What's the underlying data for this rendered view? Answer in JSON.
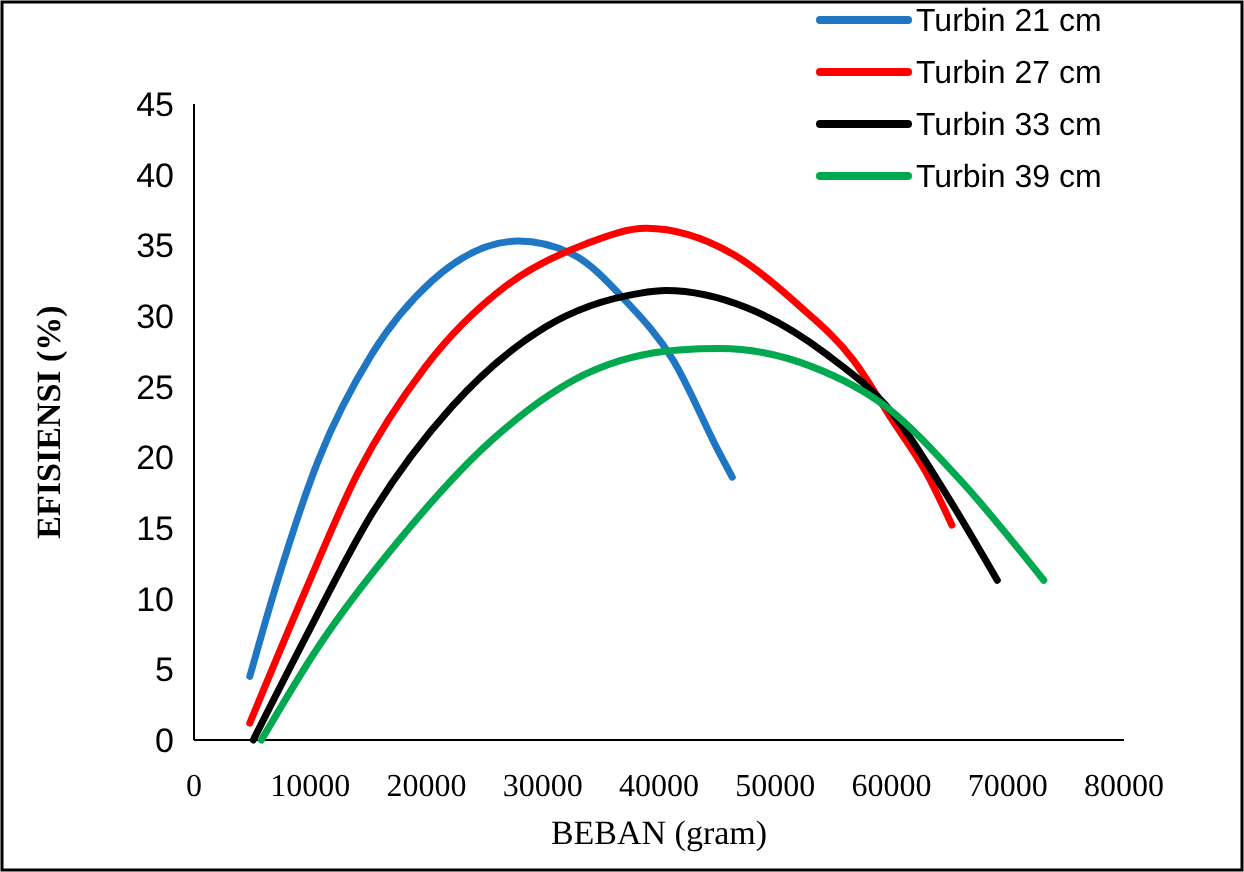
{
  "chart_data": {
    "type": "line",
    "xlabel": "BEBAN (gram)",
    "ylabel": "EFISIENSI (%)",
    "xlim": [
      0,
      80000
    ],
    "xticks": [
      0,
      10000,
      20000,
      30000,
      40000,
      50000,
      60000,
      70000,
      80000
    ],
    "ylim": [
      0,
      45
    ],
    "yticks": [
      0,
      5,
      10,
      15,
      20,
      25,
      30,
      35,
      40,
      45
    ],
    "grid": false,
    "legend": "top right",
    "marker": "none",
    "line_style": "solid",
    "series": [
      {
        "name": "Turbin 21 cm",
        "color": "#1f77c4",
        "x": [
          4800,
          7200,
          10700,
          15300,
          20500,
          27900,
          32500,
          37100,
          41200,
          45200,
          46300
        ],
        "values": [
          4.5,
          11.3,
          19.8,
          27.3,
          32.5,
          35.3,
          34.4,
          31.1,
          26.9,
          20.3,
          18.6
        ]
      },
      {
        "name": "Turbin 27 cm",
        "color": "#ff0000",
        "x": [
          4800,
          9500,
          14100,
          19900,
          26800,
          33700,
          38900,
          46300,
          52100,
          56700,
          60100,
          63000,
          65200
        ],
        "values": [
          1.2,
          10.4,
          18.9,
          26.4,
          32.1,
          35.1,
          36.2,
          34.4,
          30.7,
          26.9,
          22.6,
          18.9,
          15.2
        ]
      },
      {
        "name": "Turbin 33 cm",
        "color": "#000000",
        "x": [
          5100,
          9500,
          15300,
          22200,
          30200,
          38300,
          40600,
          47500,
          54400,
          60100,
          64700,
          69100
        ],
        "values": [
          0,
          7.1,
          16.0,
          23.6,
          29.2,
          31.6,
          31.8,
          30.6,
          27.3,
          23.1,
          17.4,
          11.3
        ]
      },
      {
        "name": "Turbin 39 cm",
        "color": "#00a84f",
        "x": [
          5800,
          10700,
          17600,
          25600,
          33700,
          41700,
          45200,
          53200,
          59500,
          65900,
          73100
        ],
        "values": [
          0,
          6.6,
          14.1,
          21.2,
          25.9,
          27.6,
          27.7,
          26.4,
          23.6,
          18.4,
          11.3
        ]
      }
    ]
  }
}
